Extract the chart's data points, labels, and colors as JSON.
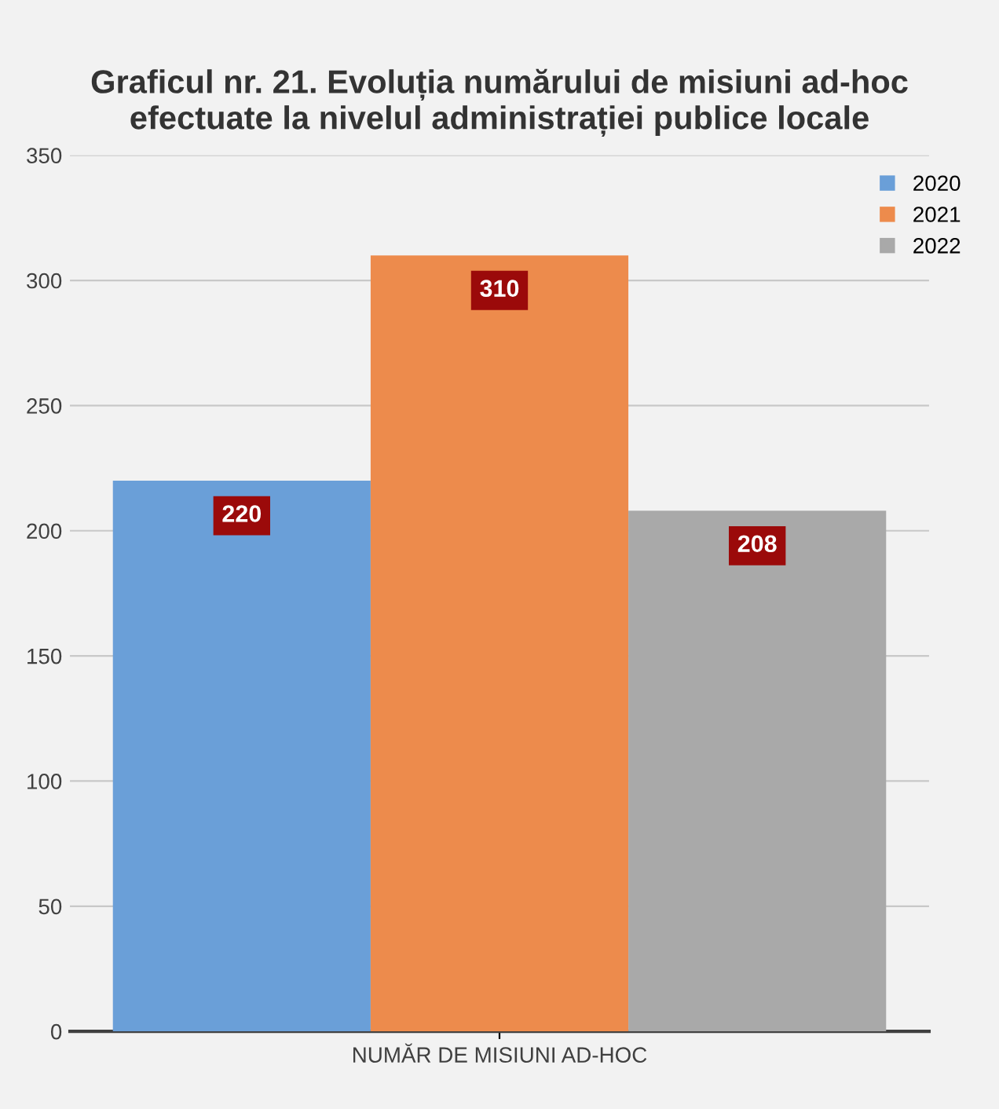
{
  "chart_data": {
    "type": "bar",
    "title": "Graficul nr. 21. Evoluția numărului de misiuni ad-hoc\nefectuate la nivelul administrației publice locale",
    "categories": [
      "NUMĂR DE MISIUNI AD-HOC"
    ],
    "series": [
      {
        "name": "2020",
        "color": "#6a9fd8",
        "values": [
          220
        ]
      },
      {
        "name": "2021",
        "color": "#ed8b4c",
        "values": [
          310
        ]
      },
      {
        "name": "2022",
        "color": "#a9a9a9",
        "values": [
          208
        ]
      }
    ],
    "ylim": [
      0,
      350
    ],
    "yticks": [
      0,
      50,
      100,
      150,
      200,
      250,
      300,
      350
    ],
    "grid": "y",
    "legend": "top right",
    "data_labels": true
  }
}
